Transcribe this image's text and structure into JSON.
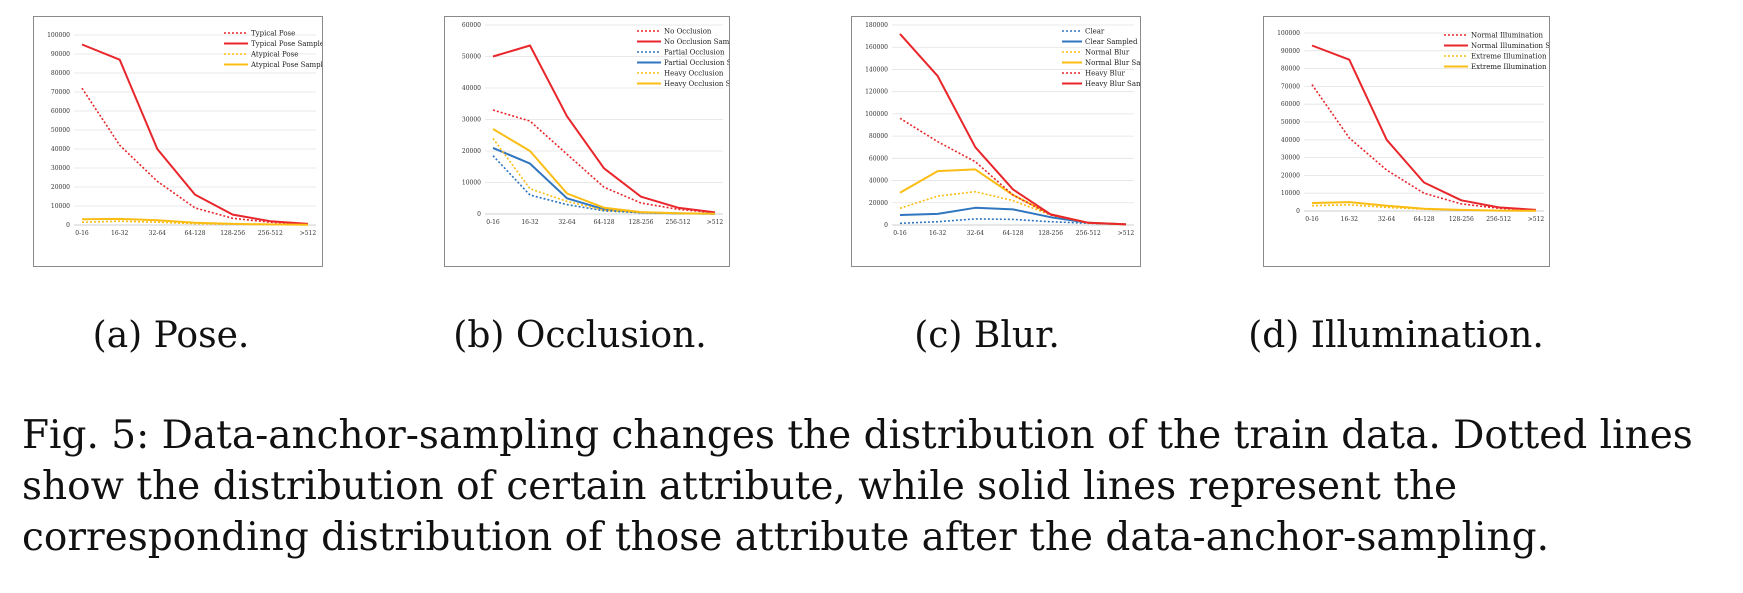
{
  "figure": {
    "caption_prefix": "Fig. 5:",
    "caption_text": "Data-anchor-sampling changes the distribution of the train data. Dotted lines show the distribution of certain attribute, while solid lines represent the corresponding distribution of those attribute after the data-anchor-sampling."
  },
  "colors": {
    "red": "#e8262b",
    "yellow": "#fbbd14",
    "blue": "#2f75c0"
  },
  "chart_data": [
    {
      "type": "line",
      "subcaption": "(a) Pose.",
      "categories": [
        "0-16",
        "16-32",
        "32-64",
        "64-128",
        "128-256",
        "256-512",
        ">512"
      ],
      "ylim": [
        0,
        100000
      ],
      "yticks": [
        "0",
        "10000",
        "20000",
        "30000",
        "40000",
        "50000",
        "60000",
        "70000",
        "80000",
        "90000",
        "100000"
      ],
      "grid": true,
      "legend_position": "top-right",
      "series": [
        {
          "name": "Typical Pose",
          "color": "#e8262b",
          "style": "dotted",
          "values": [
            72000,
            42000,
            23000,
            9000,
            3500,
            1500,
            500
          ]
        },
        {
          "name": "Typical Pose Sampled",
          "color": "#e8262b",
          "style": "solid",
          "values": [
            95000,
            87000,
            40000,
            16000,
            5500,
            2000,
            600
          ]
        },
        {
          "name": "Atypical Pose",
          "color": "#fbbd14",
          "style": "dotted",
          "values": [
            1500,
            2000,
            1500,
            700,
            400,
            200,
            80
          ]
        },
        {
          "name": "Atypical Pose Sampled",
          "color": "#fbbd14",
          "style": "solid",
          "values": [
            3000,
            3200,
            2500,
            1200,
            600,
            300,
            100
          ]
        }
      ]
    },
    {
      "type": "line",
      "subcaption": "(b) Occlusion.",
      "categories": [
        "0-16",
        "16-32",
        "32-64",
        "64-128",
        "128-256",
        "256-512",
        ">512"
      ],
      "ylim": [
        0,
        60000
      ],
      "yticks": [
        "0",
        "10000",
        "20000",
        "30000",
        "40000",
        "50000",
        "60000"
      ],
      "grid": true,
      "legend_position": "top-right",
      "series": [
        {
          "name": "No Occlusion",
          "color": "#e8262b",
          "style": "dotted",
          "values": [
            33000,
            29500,
            19000,
            8500,
            3500,
            1500,
            400
          ]
        },
        {
          "name": "No Occlusion Sampled",
          "color": "#e8262b",
          "style": "solid",
          "values": [
            50000,
            53500,
            31000,
            14500,
            5500,
            2000,
            500
          ]
        },
        {
          "name": "Partial Occlusion",
          "color": "#2f75c0",
          "style": "dotted",
          "values": [
            18500,
            6000,
            3000,
            1000,
            400,
            150,
            50
          ]
        },
        {
          "name": "Partial Occlusion Sampled",
          "color": "#2f75c0",
          "style": "solid",
          "values": [
            21000,
            16000,
            5000,
            1500,
            500,
            200,
            60
          ]
        },
        {
          "name": "Heavy Occlusion",
          "color": "#fbbd14",
          "style": "dotted",
          "values": [
            24000,
            8000,
            4000,
            1200,
            500,
            200,
            60
          ]
        },
        {
          "name": "Heavy Occlusion Sampled",
          "color": "#fbbd14",
          "style": "solid",
          "values": [
            27000,
            20000,
            6500,
            2000,
            600,
            250,
            80
          ]
        }
      ]
    },
    {
      "type": "line",
      "subcaption": "(c) Blur.",
      "categories": [
        "0-16",
        "16-32",
        "32-64",
        "64-128",
        "128-256",
        "256-512",
        ">512"
      ],
      "ylim": [
        0,
        180000
      ],
      "yticks": [
        "0",
        "20000",
        "40000",
        "60000",
        "80000",
        "100000",
        "120000",
        "140000",
        "160000",
        "180000"
      ],
      "grid": true,
      "legend_position": "top-right",
      "series": [
        {
          "name": "Clear",
          "color": "#2f75c0",
          "style": "dotted",
          "values": [
            1500,
            3000,
            5500,
            5000,
            3000,
            1500,
            500
          ]
        },
        {
          "name": "Clear Sampled",
          "color": "#2f75c0",
          "style": "solid",
          "values": [
            9000,
            10000,
            15500,
            14000,
            7000,
            2000,
            600
          ]
        },
        {
          "name": "Normal Blur",
          "color": "#fbbd14",
          "style": "dotted",
          "values": [
            15000,
            26000,
            30000,
            22000,
            9000,
            2000,
            500
          ]
        },
        {
          "name": "Normal Blur Sampled",
          "color": "#fbbd14",
          "style": "solid",
          "values": [
            29000,
            48500,
            50000,
            27000,
            9500,
            2000,
            500
          ]
        },
        {
          "name": "Heavy Blur",
          "color": "#e8262b",
          "style": "dotted",
          "values": [
            96000,
            75000,
            57000,
            27000,
            9000,
            2000,
            500
          ]
        },
        {
          "name": "Heavy Blur Sampled",
          "color": "#e8262b",
          "style": "solid",
          "values": [
            172000,
            134000,
            70000,
            32000,
            9500,
            2000,
            500
          ]
        }
      ]
    },
    {
      "type": "line",
      "subcaption": "(d) Illumination.",
      "categories": [
        "0-16",
        "16-32",
        "32-64",
        "64-128",
        "128-256",
        "256-512",
        ">512"
      ],
      "ylim": [
        0,
        100000
      ],
      "yticks": [
        "0",
        "10000",
        "20000",
        "30000",
        "40000",
        "50000",
        "60000",
        "70000",
        "80000",
        "90000",
        "100000"
      ],
      "grid": true,
      "legend_position": "top-right",
      "series": [
        {
          "name": "Normal Illumination",
          "color": "#e8262b",
          "style": "dotted",
          "values": [
            71000,
            41000,
            23000,
            10000,
            4000,
            1500,
            500
          ]
        },
        {
          "name": "Normal Illumination Sampled",
          "color": "#e8262b",
          "style": "solid",
          "values": [
            93000,
            85000,
            40000,
            16000,
            6000,
            2000,
            600
          ]
        },
        {
          "name": "Extreme Illumination",
          "color": "#fbbd14",
          "style": "dotted",
          "values": [
            3000,
            3500,
            2000,
            1000,
            500,
            200,
            80
          ]
        },
        {
          "name": "Extreme Illumination Sampled",
          "color": "#fbbd14",
          "style": "solid",
          "values": [
            4500,
            5000,
            3000,
            1300,
            600,
            250,
            100
          ]
        }
      ]
    }
  ]
}
